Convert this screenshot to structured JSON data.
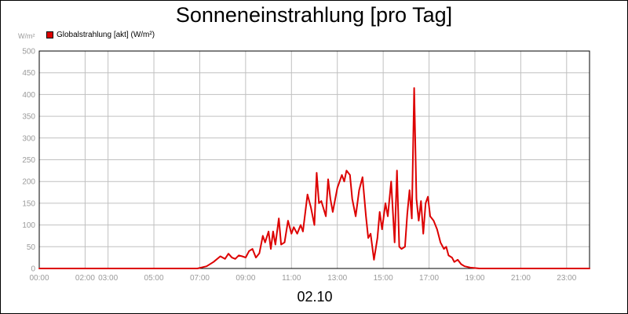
{
  "chart_data": {
    "type": "line",
    "title": "Sonneneinstrahlung [pro Tag]",
    "ylabel": "W/m²",
    "xlabel": "02.10",
    "legend": {
      "position": "top-left",
      "entries": [
        "Globalstrahlung [akt] (W/m²)"
      ]
    },
    "grid": true,
    "colors": {
      "series": "#dd0000",
      "grid": "#c0c0c0",
      "ticks": "#9a9a9a"
    },
    "ylim": [
      0,
      500
    ],
    "xlim_hours": [
      0,
      24
    ],
    "y_ticks": [
      "0",
      "50",
      "100",
      "150",
      "200",
      "250",
      "300",
      "350",
      "400",
      "450",
      "500"
    ],
    "x_ticks": [
      {
        "hour": 0,
        "label": "00:00"
      },
      {
        "hour": 2,
        "label": "02:00"
      },
      {
        "hour": 3,
        "label": "03:00"
      },
      {
        "hour": 5,
        "label": "05:00"
      },
      {
        "hour": 7,
        "label": "07:00"
      },
      {
        "hour": 9,
        "label": "09:00"
      },
      {
        "hour": 11,
        "label": "11:00"
      },
      {
        "hour": 13,
        "label": "13:00"
      },
      {
        "hour": 15,
        "label": "15:00"
      },
      {
        "hour": 17,
        "label": "17:00"
      },
      {
        "hour": 19,
        "label": "19:00"
      },
      {
        "hour": 21,
        "label": "21:00"
      },
      {
        "hour": 23,
        "label": "23:00"
      }
    ],
    "series": [
      {
        "name": "Globalstrahlung [akt] (W/m²)",
        "x": [
          0,
          6.9,
          7.3,
          7.6,
          7.9,
          8.1,
          8.25,
          8.4,
          8.55,
          8.7,
          8.85,
          9.0,
          9.15,
          9.3,
          9.45,
          9.6,
          9.75,
          9.85,
          10.0,
          10.1,
          10.2,
          10.3,
          10.45,
          10.55,
          10.7,
          10.85,
          11.0,
          11.1,
          11.25,
          11.4,
          11.5,
          11.7,
          11.85,
          12.0,
          12.1,
          12.2,
          12.3,
          12.5,
          12.6,
          12.7,
          12.8,
          13.0,
          13.2,
          13.3,
          13.4,
          13.55,
          13.65,
          13.8,
          13.95,
          14.1,
          14.25,
          14.35,
          14.45,
          14.6,
          14.75,
          14.85,
          14.95,
          15.1,
          15.2,
          15.35,
          15.5,
          15.6,
          15.7,
          15.8,
          15.95,
          16.05,
          16.15,
          16.25,
          16.35,
          16.45,
          16.55,
          16.65,
          16.75,
          16.85,
          16.95,
          17.05,
          17.2,
          17.35,
          17.5,
          17.65,
          17.75,
          17.85,
          18.0,
          18.1,
          18.25,
          18.4,
          18.55,
          18.8,
          19.2,
          24
        ],
        "values": [
          0,
          0,
          5,
          15,
          28,
          22,
          34,
          25,
          22,
          30,
          28,
          25,
          40,
          45,
          25,
          35,
          75,
          60,
          85,
          45,
          85,
          55,
          115,
          55,
          60,
          110,
          80,
          95,
          80,
          100,
          85,
          170,
          140,
          100,
          220,
          150,
          155,
          120,
          205,
          160,
          130,
          185,
          215,
          200,
          225,
          215,
          160,
          120,
          180,
          210,
          120,
          70,
          80,
          20,
          70,
          130,
          90,
          150,
          120,
          200,
          60,
          225,
          50,
          45,
          50,
          125,
          180,
          115,
          415,
          160,
          110,
          155,
          80,
          150,
          165,
          120,
          110,
          90,
          60,
          45,
          50,
          30,
          25,
          15,
          20,
          10,
          5,
          2,
          0,
          0
        ]
      }
    ]
  }
}
